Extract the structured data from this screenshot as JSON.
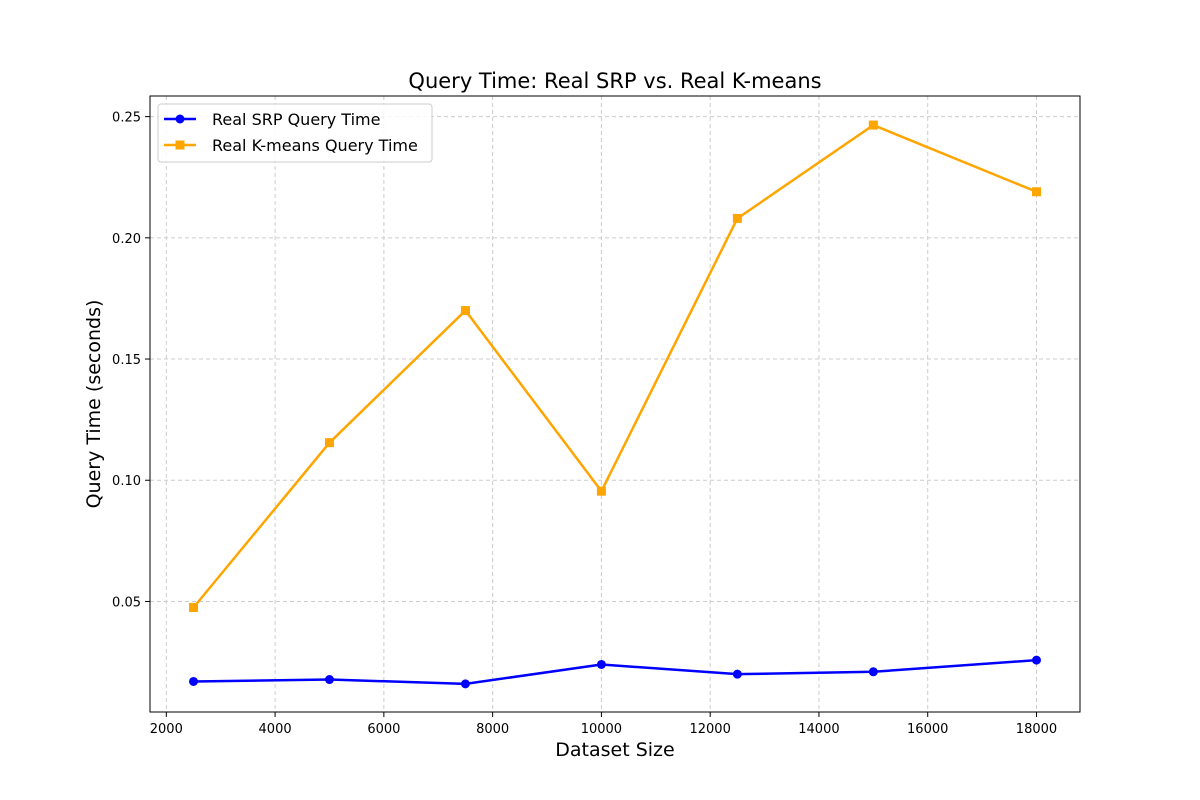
{
  "chart_data": {
    "type": "line",
    "title": "Query Time: Real SRP vs. Real K-means",
    "xlabel": "Dataset Size",
    "ylabel": "Query Time (seconds)",
    "xlim": [
      1700,
      18800
    ],
    "ylim": [
      0.0044,
      0.2585
    ],
    "xticks": [
      2000,
      4000,
      6000,
      8000,
      10000,
      12000,
      14000,
      16000,
      18000
    ],
    "yticks": [
      0.05,
      0.1,
      0.15,
      0.2,
      0.25
    ],
    "ytick_labels": [
      "0.05",
      "0.10",
      "0.15",
      "0.20",
      "0.25"
    ],
    "grid": true,
    "legend_position": "top-left",
    "x": [
      2500,
      5000,
      7500,
      10000,
      12500,
      15000,
      18000
    ],
    "series": [
      {
        "name": "Real SRP Query Time",
        "color": "#0000ff",
        "marker": "circle",
        "values": [
          0.017,
          0.0178,
          0.016,
          0.024,
          0.02,
          0.021,
          0.0258
        ]
      },
      {
        "name": "Real K-means Query Time",
        "color": "#ffa500",
        "marker": "square",
        "values": [
          0.0475,
          0.1155,
          0.17,
          0.0955,
          0.208,
          0.2465,
          0.219
        ]
      }
    ]
  }
}
